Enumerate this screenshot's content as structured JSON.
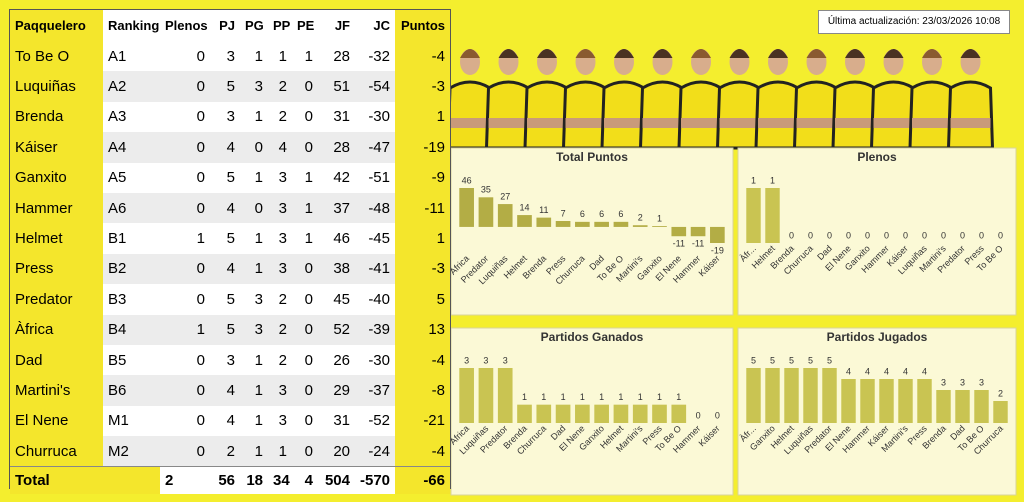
{
  "update_label": "Última actualización: 23/03/2026 10:08",
  "table": {
    "header": [
      "Paqquelero",
      "Ranking",
      "Plenos",
      "PJ",
      "PG",
      "PP",
      "PE",
      "JF",
      "JC",
      "Puntos"
    ],
    "rows": [
      [
        "To Be O",
        "A1",
        0,
        3,
        1,
        1,
        1,
        28,
        -32,
        -4
      ],
      [
        "Luquiñas",
        "A2",
        0,
        5,
        3,
        2,
        0,
        51,
        -54,
        -3
      ],
      [
        "Brenda",
        "A3",
        0,
        3,
        1,
        2,
        0,
        31,
        -30,
        1
      ],
      [
        "Káiser",
        "A4",
        0,
        4,
        0,
        4,
        0,
        28,
        -47,
        -19
      ],
      [
        "Ganxito",
        "A5",
        0,
        5,
        1,
        3,
        1,
        42,
        -51,
        -9
      ],
      [
        "Hammer",
        "A6",
        0,
        4,
        0,
        3,
        1,
        37,
        -48,
        -11
      ],
      [
        "Helmet",
        "B1",
        1,
        5,
        1,
        3,
        1,
        46,
        -45,
        1
      ],
      [
        "Press",
        "B2",
        0,
        4,
        1,
        3,
        0,
        38,
        -41,
        -3
      ],
      [
        "Predator",
        "B3",
        0,
        5,
        3,
        2,
        0,
        45,
        -40,
        5
      ],
      [
        "Àfrica",
        "B4",
        1,
        5,
        3,
        2,
        0,
        52,
        -39,
        13
      ],
      [
        "Dad",
        "B5",
        0,
        3,
        1,
        2,
        0,
        26,
        -30,
        -4
      ],
      [
        "Martini's",
        "B6",
        0,
        4,
        1,
        3,
        0,
        29,
        -37,
        -8
      ],
      [
        "El Nene",
        "M1",
        0,
        4,
        1,
        3,
        0,
        31,
        -52,
        -21
      ],
      [
        "Churruca",
        "M2",
        0,
        2,
        1,
        1,
        0,
        20,
        -24,
        -4
      ]
    ],
    "total": [
      "Total",
      2,
      56,
      18,
      34,
      4,
      504,
      -570,
      -66
    ]
  },
  "chart_data": [
    {
      "type": "bar",
      "title": "Total Puntos",
      "color": "#b3ad45",
      "categories": [
        "Àfrica",
        "Predator",
        "Luquiñas",
        "Helmet",
        "Brenda",
        "Press",
        "Churruca",
        "Dad",
        "To Be O",
        "Martini's",
        "Ganxito",
        "El Nene",
        "Hammer",
        "Káiser"
      ],
      "values": [
        46,
        35,
        27,
        14,
        11,
        7,
        6,
        6,
        6,
        2,
        1,
        -11,
        -11,
        -19
      ]
    },
    {
      "type": "bar",
      "title": "Plenos",
      "color": "#c9c452",
      "categories": [
        "Àfr...",
        "Helmet",
        "Brenda",
        "Churruca",
        "Dad",
        "El Nene",
        "Ganxito",
        "Hammer",
        "Káiser",
        "Luquiñas",
        "Martini's",
        "Predator",
        "Press",
        "To Be O"
      ],
      "values": [
        1,
        1,
        0,
        0,
        0,
        0,
        0,
        0,
        0,
        0,
        0,
        0,
        0,
        0
      ]
    },
    {
      "type": "bar",
      "title": "Partidos Ganados",
      "color": "#c9c452",
      "categories": [
        "Àfrica",
        "Luquiñas",
        "Predator",
        "Brenda",
        "Churruca",
        "Dad",
        "El Nene",
        "Ganxito",
        "Helmet",
        "Martini's",
        "Press",
        "To Be O",
        "Hammer",
        "Káiser"
      ],
      "values": [
        3,
        3,
        3,
        1,
        1,
        1,
        1,
        1,
        1,
        1,
        1,
        1,
        0,
        0
      ]
    },
    {
      "type": "bar",
      "title": "Partidos Jugados",
      "color": "#c9c452",
      "categories": [
        "Àfr...",
        "Ganxito",
        "Helmet",
        "Luquiñas",
        "Predator",
        "El Nene",
        "Hammer",
        "Káiser",
        "Martini's",
        "Press",
        "Brenda",
        "Dad",
        "To Be O",
        "Churruca"
      ],
      "values": [
        5,
        5,
        5,
        5,
        5,
        4,
        4,
        4,
        4,
        4,
        3,
        3,
        3,
        2
      ]
    }
  ]
}
